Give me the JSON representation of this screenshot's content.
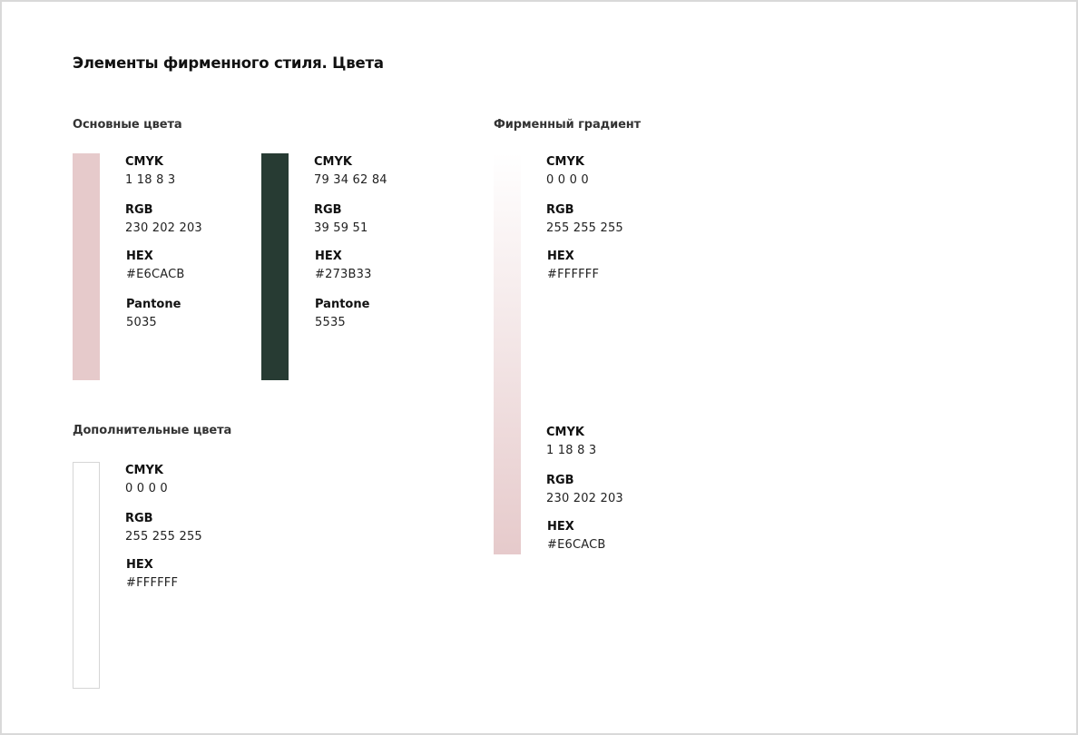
{
  "page": {
    "title": "Элементы фирменного стиля. Цвета"
  },
  "primary": {
    "title": "Основные цвета",
    "colors": [
      {
        "swatch_color": "#E6CACB",
        "cmyk_label": "CMYK",
        "cmyk": "1 18 8 3",
        "rgb_label": "RGB",
        "rgb": "230 202 203",
        "hex_label": "HEX",
        "hex": "#E6CACB",
        "pantone_label": "Pantone",
        "pantone": "5035"
      },
      {
        "swatch_color": "#273B33",
        "cmyk_label": "CMYK",
        "cmyk": "79 34 62 84",
        "rgb_label": "RGB",
        "rgb": "39 59 51",
        "hex_label": "HEX",
        "hex": "#273B33",
        "pantone_label": "Pantone",
        "pantone": "5535"
      }
    ]
  },
  "additional": {
    "title": "Дополнительные цвета",
    "colors": [
      {
        "swatch_color": "#FFFFFF",
        "cmyk_label": "CMYK",
        "cmyk": "0 0 0 0",
        "rgb_label": "RGB",
        "rgb": "255 255 255",
        "hex_label": "HEX",
        "hex": "#FFFFFF"
      }
    ]
  },
  "gradient": {
    "title": "Фирменный градиент",
    "start_color": "#FFFFFF",
    "end_color": "#E6CACB",
    "start": {
      "cmyk_label": "CMYK",
      "cmyk": "0 0 0 0",
      "rgb_label": "RGB",
      "rgb": "255 255 255",
      "hex_label": "HEX",
      "hex": "#FFFFFF"
    },
    "end": {
      "cmyk_label": "CMYK",
      "cmyk": "1 18 8 3",
      "rgb_label": "RGB",
      "rgb": "230 202 203",
      "hex_label": "HEX",
      "hex": "#E6CACB"
    }
  }
}
